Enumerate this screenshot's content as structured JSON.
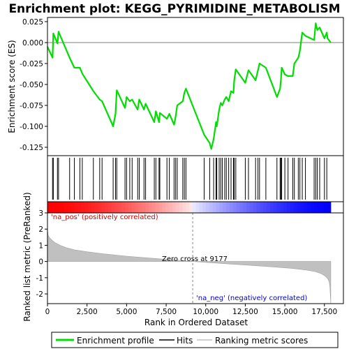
{
  "chart_data": {
    "type": "line",
    "title": "Enrichment plot: KEGG_PYRIMIDINE_METABOLISM",
    "top_panel": {
      "ylabel": "Enrichment score (ES)",
      "ylim": [
        -0.135,
        0.03
      ],
      "yticks": [
        0.025,
        0.0,
        -0.025,
        -0.05,
        -0.075,
        -0.1,
        -0.125
      ],
      "ytick_labels": [
        "0.025",
        "0.000",
        "-0.025",
        "-0.050",
        "-0.075",
        "-0.100",
        "-0.125"
      ],
      "series": [
        {
          "name": "Enrichment profile",
          "color": "#00dd00",
          "x": [
            0,
            320,
            370,
            630,
            700,
            1400,
            1700,
            2050,
            2200,
            2900,
            3300,
            3450,
            4150,
            4300,
            4380,
            4900,
            5000,
            5200,
            5350,
            5700,
            5800,
            6100,
            6200,
            6750,
            6850,
            7050,
            7100,
            7550,
            7700,
            8000,
            8100,
            8200,
            8550,
            8650,
            8750,
            9900,
            10250,
            10350,
            10500,
            10650,
            10700,
            10850,
            10950,
            11050,
            11200,
            11300,
            11450,
            11600,
            11750,
            11800,
            11900,
            12500,
            12700,
            13150,
            13300,
            13400,
            13800,
            14500,
            14700,
            14750,
            14800,
            15000,
            15200,
            15500,
            15600,
            15850,
            15950,
            16100,
            16300,
            16850,
            16950,
            17050,
            17200,
            17500,
            17650,
            17700,
            17900
          ],
          "y": [
            -0.005,
            -0.018,
            0.011,
            -0.001,
            0.013,
            -0.018,
            -0.03,
            -0.03,
            -0.037,
            -0.058,
            -0.068,
            -0.07,
            -0.1,
            -0.085,
            -0.057,
            -0.078,
            -0.065,
            -0.07,
            -0.068,
            -0.08,
            -0.068,
            -0.08,
            -0.073,
            -0.095,
            -0.082,
            -0.095,
            -0.084,
            -0.091,
            -0.085,
            -0.098,
            -0.088,
            -0.075,
            -0.07,
            -0.06,
            -0.055,
            -0.11,
            -0.12,
            -0.127,
            -0.115,
            -0.095,
            -0.1,
            -0.08,
            -0.072,
            -0.075,
            -0.068,
            -0.065,
            -0.07,
            -0.058,
            -0.06,
            -0.045,
            -0.032,
            -0.048,
            -0.033,
            -0.045,
            -0.033,
            -0.025,
            -0.03,
            -0.065,
            -0.055,
            -0.045,
            -0.03,
            -0.038,
            -0.04,
            -0.04,
            -0.025,
            -0.018,
            -0.01,
            0.012,
            0.008,
            0.003,
            0.023,
            0.015,
            0.018,
            0.005,
            0.012,
            0.005,
            0.0
          ]
        }
      ]
    },
    "hits_panel": {
      "label": "Hits",
      "hit_ranks": [
        320,
        370,
        630,
        700,
        1400,
        1700,
        2050,
        2200,
        2900,
        3300,
        3450,
        4150,
        4300,
        4380,
        4900,
        5000,
        5200,
        5350,
        5700,
        5800,
        6100,
        6200,
        6750,
        6850,
        7050,
        7100,
        7550,
        7700,
        8000,
        8100,
        8200,
        8550,
        8650,
        8750,
        9900,
        10250,
        10500,
        10650,
        10700,
        10850,
        10950,
        11050,
        11200,
        11300,
        11450,
        11600,
        11750,
        11800,
        11900,
        12500,
        12700,
        13150,
        13300,
        13400,
        13800,
        14500,
        14700,
        14750,
        14800,
        15000,
        15200,
        15500,
        15600,
        15850,
        15950,
        16100,
        16300,
        16850,
        16950,
        17050,
        17200,
        17500,
        17650
      ]
    },
    "metric_panel": {
      "ylabel": "Ranked list metric (PreRanked)",
      "ylim": [
        -2.6,
        3.0
      ],
      "yticks": [
        3,
        2,
        1,
        0,
        -1,
        -2
      ],
      "ytick_labels": [
        "3",
        "2",
        "1",
        "0",
        "-1",
        "-2"
      ],
      "series": [
        {
          "name": "Ranking metric scores",
          "color": "#c0c0c0",
          "x": [
            0,
            50,
            150,
            300,
            500,
            800,
            1200,
            1700,
            2500,
            3500,
            5000,
            7000,
            9177,
            11000,
            13000,
            14500,
            15500,
            16300,
            16900,
            17300,
            17550,
            17700,
            17800,
            17850,
            17900
          ],
          "y": [
            1.95,
            1.6,
            1.45,
            1.3,
            1.15,
            1.0,
            0.85,
            0.72,
            0.6,
            0.48,
            0.33,
            0.17,
            0.0,
            -0.12,
            -0.25,
            -0.35,
            -0.43,
            -0.52,
            -0.62,
            -0.75,
            -0.9,
            -1.05,
            -1.25,
            -1.6,
            -2.6
          ]
        }
      ],
      "zero_cross_label": "Zero cross at 9177",
      "zero_cross_rank": 9177,
      "pos_label": "'na_pos' (positively correlated)",
      "neg_label": "'na_neg' (negatively correlated)"
    },
    "xlabel": "Rank in Ordered Dataset",
    "xlim": [
      0,
      18700
    ],
    "xticks": [
      0,
      2500,
      5000,
      7500,
      10000,
      12500,
      15000,
      17500
    ],
    "xtick_labels": [
      "0",
      "2,500",
      "5,000",
      "7,500",
      "10,000",
      "12,500",
      "15,000",
      "17,500"
    ],
    "legend": {
      "placement": "bottom",
      "entries": [
        {
          "label": "Enrichment profile",
          "color": "#00dd00"
        },
        {
          "label": "Hits",
          "color": "#000000"
        },
        {
          "label": "Ranking metric scores",
          "color": "#c0c0c0"
        }
      ]
    },
    "colors": {
      "pos_label": "#cc0000",
      "neg_label": "#0000cc",
      "red_band": "#ff0000",
      "blue_band": "#0000ff"
    },
    "grid": false
  }
}
